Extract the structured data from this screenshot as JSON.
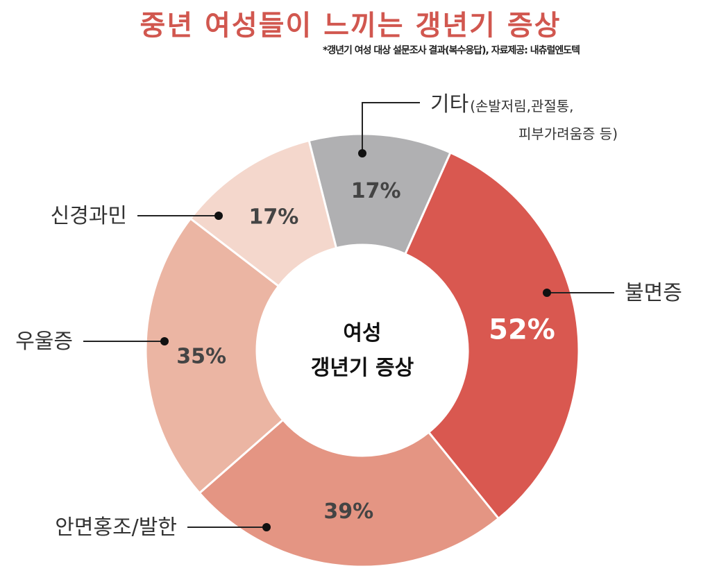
{
  "title": "중년 여성들이 느끼는 갱년기 증상",
  "subtitle": "*갱년기 여성 대상 설문조사 결과(복수응답), 자료제공: 내츄럴엔도텍",
  "chart_data": {
    "type": "pie",
    "donut": true,
    "center_label": [
      "여성",
      "갱년기 증상"
    ],
    "unit": "%",
    "slices": [
      {
        "label": "불면증",
        "value": 52,
        "color": "#d95850",
        "label_color": "#ffffff"
      },
      {
        "label": "안면홍조/발한",
        "value": 39,
        "color": "#e49583",
        "label_color": "#444444"
      },
      {
        "label": "우울증",
        "value": 35,
        "color": "#ebb5a3",
        "label_color": "#444444"
      },
      {
        "label": "신경과민",
        "value": 17,
        "color": "#f4d7cc",
        "label_color": "#444444"
      },
      {
        "label": "기타",
        "label_note_lines": [
          "(손발저림,관절통,",
          "피부가려움증 등)"
        ],
        "value": 17,
        "color": "#b0b0b2",
        "label_color": "#444444"
      }
    ]
  }
}
